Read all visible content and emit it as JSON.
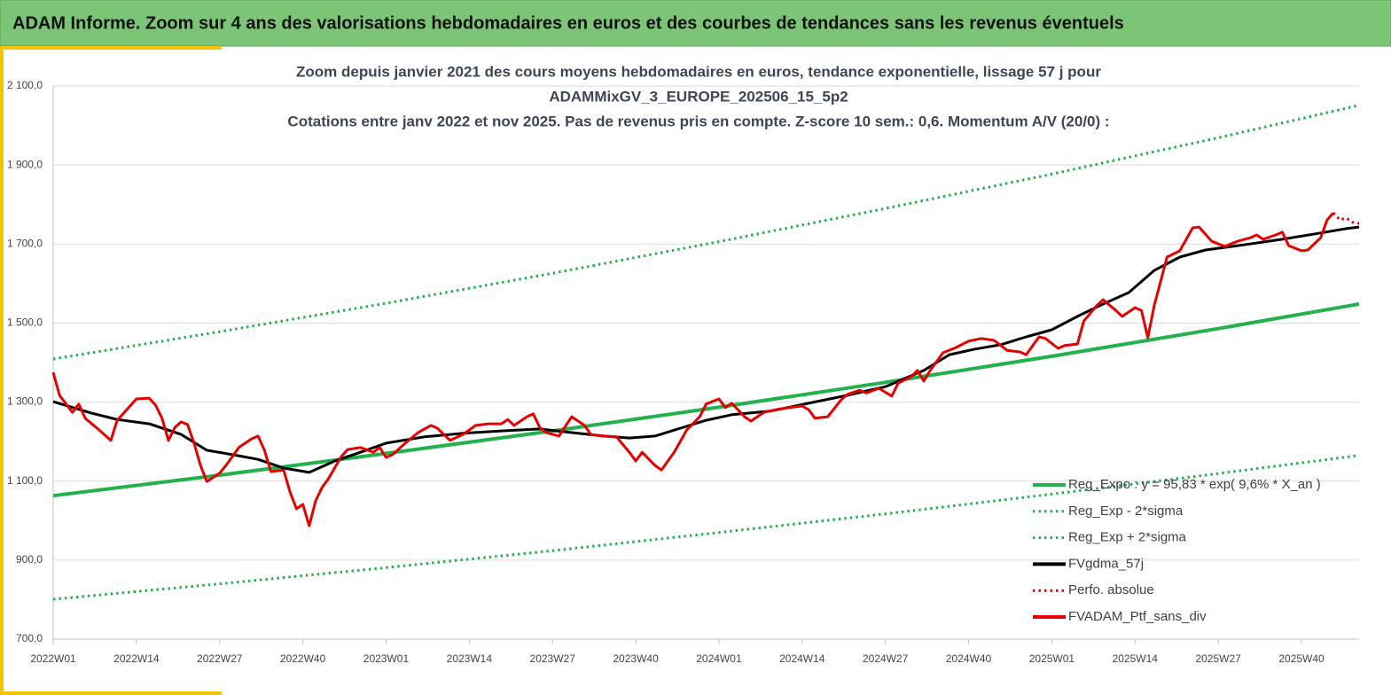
{
  "header": "ADAM Informe. Zoom sur 4 ans des valorisations hebdomadaires en euros et des courbes de tendances sans les revenus éventuels",
  "chart_data": {
    "type": "line",
    "title": [
      "Zoom depuis janvier 2021 des cours moyens hebdomadaires  en euros, tendance exponentielle, lissage 57 j pour",
      "ADAMMixGV_3_EUROPE_202506_15_5p2",
      "Cotations entre janv 2022 et nov 2025. Pas de revenus pris en compte. Z-score 10 sem.: 0,6. Momentum A/V (20/0) :"
    ],
    "xlim": [
      0,
      204
    ],
    "xticks": [
      {
        "value": 0,
        "label": "2022W01"
      },
      {
        "value": 13,
        "label": "2022W14"
      },
      {
        "value": 26,
        "label": "2022W27"
      },
      {
        "value": 39,
        "label": "2022W40"
      },
      {
        "value": 52,
        "label": "2023W01"
      },
      {
        "value": 65,
        "label": "2023W14"
      },
      {
        "value": 78,
        "label": "2023W27"
      },
      {
        "value": 91,
        "label": "2023W40"
      },
      {
        "value": 104,
        "label": "2024W01"
      },
      {
        "value": 117,
        "label": "2024W14"
      },
      {
        "value": 130,
        "label": "2024W27"
      },
      {
        "value": 143,
        "label": "2024W40"
      },
      {
        "value": 156,
        "label": "2025W01"
      },
      {
        "value": 169,
        "label": "2025W14"
      },
      {
        "value": 182,
        "label": "2025W27"
      },
      {
        "value": 195,
        "label": "2025W40"
      }
    ],
    "ylim": [
      700,
      2100
    ],
    "yticks": [
      {
        "value": 700,
        "label": "700,0"
      },
      {
        "value": 900,
        "label": "900,0"
      },
      {
        "value": 1100,
        "label": "1 100,0"
      },
      {
        "value": 1300,
        "label": "1 300,0"
      },
      {
        "value": 1500,
        "label": "1 500,0"
      },
      {
        "value": 1700,
        "label": "1 700,0"
      },
      {
        "value": 1900,
        "label": "1 900,0"
      },
      {
        "value": 2100,
        "label": "2 100,0"
      }
    ],
    "grid": true,
    "legend": "bottom-right",
    "series": [
      {
        "name": "Reg_Expo : y = 95,83 * exp( 9,6% *  X_an )",
        "color": "#22b14c",
        "style": "solid",
        "x": [
          0,
          26,
          52,
          78,
          104,
          130,
          156,
          182,
          204
        ],
        "values": [
          1063,
          1115,
          1170,
          1227,
          1287,
          1350,
          1416,
          1486,
          1548
        ]
      },
      {
        "name": "Reg_Exp - 2*sigma",
        "color": "#22b14c",
        "style": "dotted",
        "x": [
          0,
          26,
          52,
          78,
          104,
          130,
          156,
          182,
          204
        ],
        "values": [
          801,
          840,
          881,
          924,
          970,
          1017,
          1067,
          1119,
          1165
        ]
      },
      {
        "name": "Reg_Exp + 2*sigma",
        "color": "#22b14c",
        "style": "dotted",
        "x": [
          0,
          26,
          52,
          78,
          104,
          130,
          156,
          182,
          204
        ],
        "values": [
          1409,
          1478,
          1550,
          1626,
          1706,
          1790,
          1877,
          1969,
          2051
        ]
      },
      {
        "name": "FVgdma_57j",
        "color": "#000000",
        "style": "solid",
        "x": [
          0,
          6,
          10,
          15,
          20,
          24,
          28,
          32,
          36,
          40,
          44,
          48,
          52,
          58,
          64,
          70,
          76,
          82,
          86,
          90,
          94,
          98,
          102,
          106,
          112,
          118,
          124,
          130,
          136,
          140,
          144,
          148,
          152,
          156,
          160,
          164,
          168,
          172,
          176,
          180,
          186,
          192,
          198,
          202,
          204
        ],
        "values": [
          1301,
          1272,
          1256,
          1245,
          1218,
          1178,
          1167,
          1155,
          1133,
          1122,
          1151,
          1173,
          1196,
          1212,
          1221,
          1227,
          1232,
          1221,
          1214,
          1209,
          1214,
          1234,
          1254,
          1268,
          1277,
          1297,
          1317,
          1339,
          1380,
          1420,
          1434,
          1445,
          1465,
          1483,
          1517,
          1548,
          1577,
          1633,
          1667,
          1685,
          1698,
          1712,
          1728,
          1739,
          1743
        ]
      },
      {
        "name": "Perfo. absolue",
        "color": "#e60000",
        "style": "dotted",
        "x": [
          200,
          201,
          202,
          203,
          204
        ],
        "values": [
          1779,
          1761,
          1766,
          1755,
          1752
        ]
      },
      {
        "name": "FVADAM_Ptf_sans_div",
        "color": "#e60000",
        "style": "solid",
        "x": [
          0,
          1,
          3,
          4,
          5,
          7,
          9,
          10,
          13,
          15,
          16,
          17,
          18,
          19,
          20,
          21,
          22,
          23,
          24,
          26,
          27,
          29,
          31,
          32,
          33,
          34,
          36,
          37,
          38,
          39,
          40,
          41,
          42,
          43,
          45,
          46,
          48,
          50,
          51,
          52,
          53,
          55,
          57,
          59,
          60,
          62,
          64,
          66,
          68,
          70,
          71,
          72,
          74,
          75,
          76,
          77,
          79,
          81,
          83,
          84,
          86,
          88,
          90,
          91,
          92,
          94,
          95,
          97,
          99,
          101,
          102,
          104,
          105,
          106,
          108,
          109,
          111,
          113,
          115,
          117,
          118,
          119,
          121,
          123,
          124,
          126,
          127,
          129,
          131,
          132,
          134,
          135,
          136,
          137,
          139,
          141,
          143,
          145,
          147,
          149,
          151,
          152,
          154,
          155,
          157,
          158,
          160,
          161,
          163,
          164,
          166,
          167,
          169,
          170,
          171,
          172,
          174,
          176,
          178,
          179,
          181,
          183,
          185,
          187,
          188,
          189,
          191,
          192,
          193,
          195,
          196,
          198,
          199,
          200
        ],
        "values": [
          1375,
          1317,
          1274,
          1295,
          1259,
          1232,
          1203,
          1254,
          1308,
          1310,
          1292,
          1259,
          1203,
          1236,
          1250,
          1243,
          1196,
          1140,
          1099,
          1120,
          1140,
          1185,
          1207,
          1214,
          1178,
          1124,
          1128,
          1072,
          1030,
          1041,
          987,
          1050,
          1084,
          1106,
          1162,
          1180,
          1185,
          1173,
          1185,
          1160,
          1167,
          1196,
          1223,
          1241,
          1234,
          1203,
          1218,
          1241,
          1245,
          1245,
          1256,
          1241,
          1263,
          1270,
          1236,
          1223,
          1214,
          1263,
          1241,
          1218,
          1214,
          1212,
          1173,
          1151,
          1173,
          1140,
          1128,
          1173,
          1230,
          1263,
          1295,
          1308,
          1286,
          1297,
          1263,
          1252,
          1274,
          1281,
          1286,
          1290,
          1281,
          1259,
          1263,
          1304,
          1319,
          1330,
          1323,
          1335,
          1315,
          1348,
          1364,
          1380,
          1353,
          1380,
          1425,
          1438,
          1454,
          1461,
          1456,
          1431,
          1427,
          1420,
          1465,
          1461,
          1436,
          1443,
          1447,
          1505,
          1544,
          1559,
          1532,
          1517,
          1539,
          1532,
          1463,
          1544,
          1667,
          1683,
          1741,
          1743,
          1707,
          1694,
          1707,
          1716,
          1723,
          1712,
          1723,
          1730,
          1696,
          1683,
          1685,
          1716,
          1761,
          1779
        ]
      }
    ]
  }
}
